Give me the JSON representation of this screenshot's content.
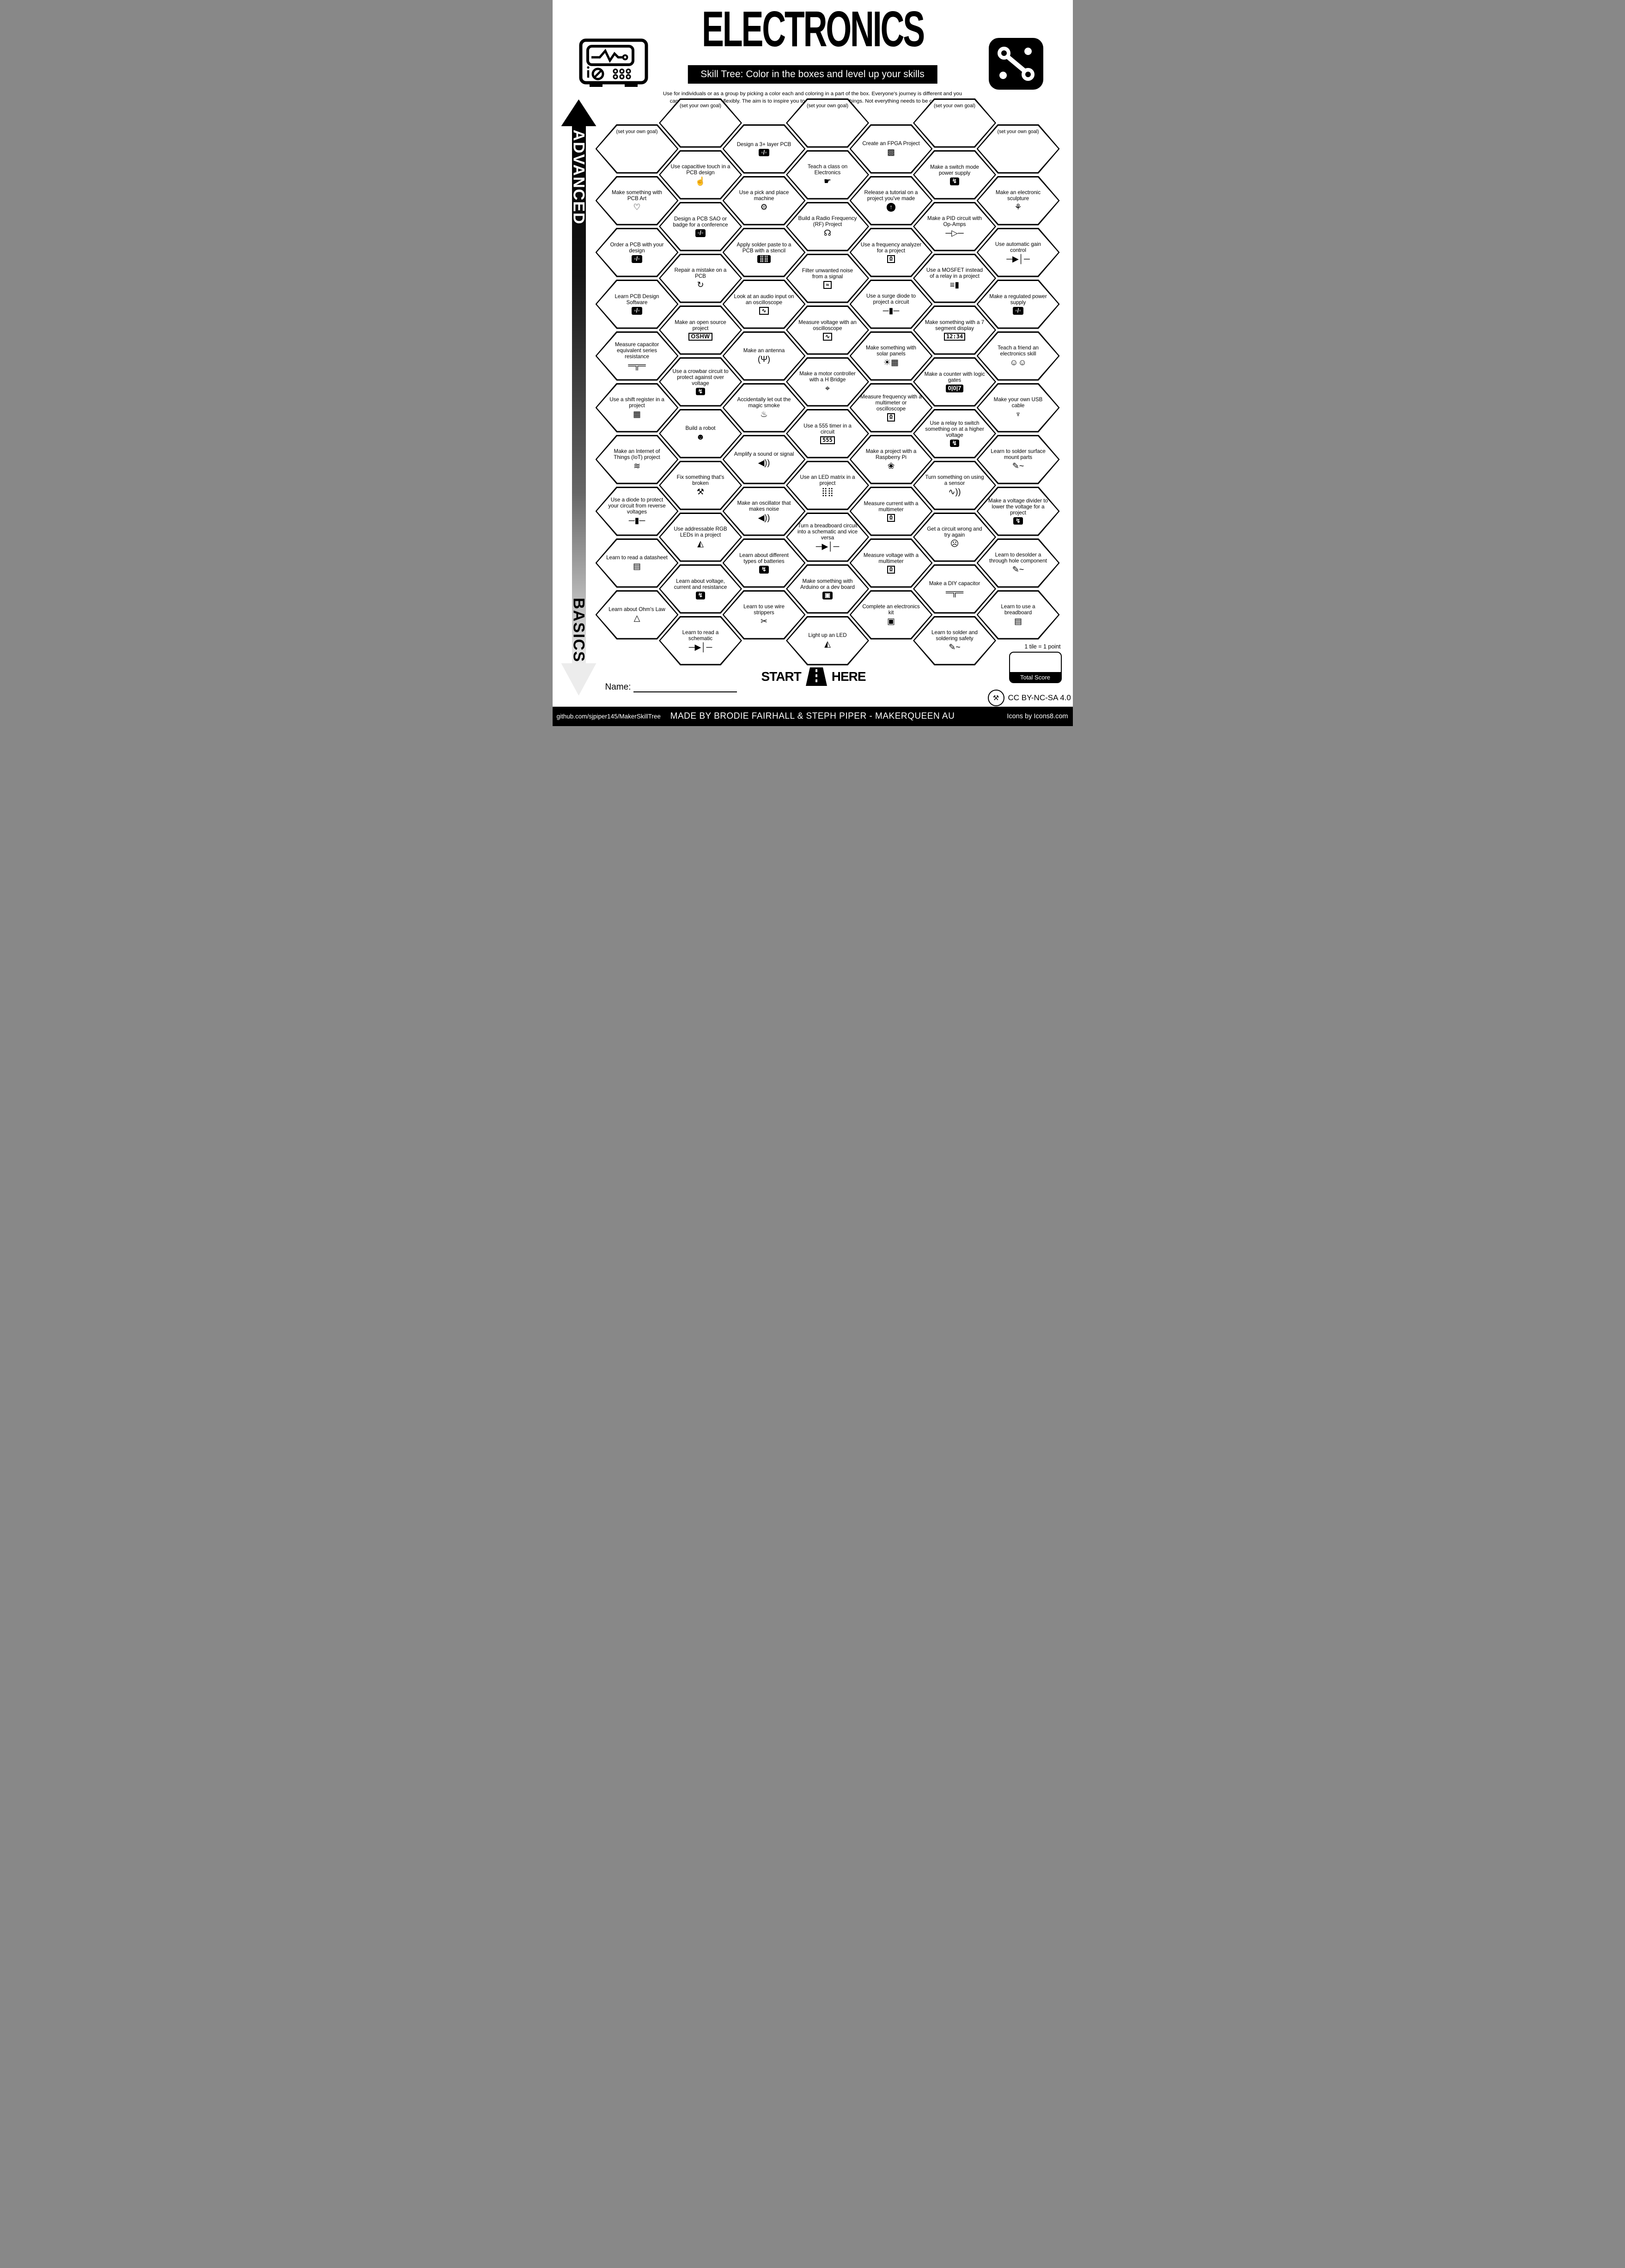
{
  "header": {
    "title": "ELECTRONICS",
    "subtitle": "Skill Tree:  Color in the boxes and level up your skills",
    "description": "Use for individuals or as a group by picking a color each and coloring in a part of the box.  Everyone's journey is different and you can interpret the goals flexibly.  The aim is to inspire you to learn and try new things. Not everything needs to be completed."
  },
  "axis": {
    "top_label": "ADVANCED",
    "bottom_label": "BASICS"
  },
  "colors": {
    "ink": "#000000",
    "paper": "#ffffff"
  },
  "tiles": [
    {
      "label": "(set your own goal)",
      "col": 1,
      "row": 0,
      "goal": true
    },
    {
      "label": "Make something with PCB Art",
      "icon": "heart-icon",
      "col": 1,
      "row": 1
    },
    {
      "label": "Order a PCB with your design",
      "icon": "pcb-icon",
      "col": 1,
      "row": 2
    },
    {
      "label": "Learn PCB Design Software",
      "icon": "pcb-icon",
      "col": 1,
      "row": 3
    },
    {
      "label": "Measure capacitor equivalent series resistance",
      "icon": "capacitor-icon",
      "col": 1,
      "row": 4
    },
    {
      "label": "Use a shift register in a project",
      "icon": "chip-icon",
      "col": 1,
      "row": 5
    },
    {
      "label": "Make an Internet of Things (IoT) project",
      "icon": "wifi-icon",
      "col": 1,
      "row": 6
    },
    {
      "label": "Use a diode to protect your circuit from reverse voltages",
      "icon": "diode-component-icon",
      "col": 1,
      "row": 7
    },
    {
      "label": "Learn to read a datasheet",
      "icon": "datasheet-icon",
      "col": 1,
      "row": 8
    },
    {
      "label": "Learn about Ohm's Law",
      "icon": "ohms-law-icon",
      "col": 1,
      "row": 9
    },
    {
      "label": "(set your own goal)",
      "col": 2,
      "row": 0,
      "goal": true
    },
    {
      "label": "Use capacitive touch in a PCB design",
      "icon": "touch-icon",
      "col": 2,
      "row": 1
    },
    {
      "label": "Design a PCB SAO or badge for a conference",
      "icon": "pcb-icon",
      "col": 2,
      "row": 2
    },
    {
      "label": "Repair a mistake on a PCB",
      "icon": "repair-icon",
      "col": 2,
      "row": 3
    },
    {
      "label": "Make an open source project",
      "icon": "oshw-icon",
      "col": 2,
      "row": 4
    },
    {
      "label": "Use a crowbar circuit to protect against over voltage",
      "icon": "surge-icon",
      "col": 2,
      "row": 5
    },
    {
      "label": "Build a robot",
      "icon": "robot-icon",
      "col": 2,
      "row": 6
    },
    {
      "label": "Fix something that's broken",
      "icon": "tools-icon",
      "col": 2,
      "row": 7
    },
    {
      "label": "Use addressable RGB LEDs in a project",
      "icon": "led-icon",
      "col": 2,
      "row": 8
    },
    {
      "label": "Learn about voltage, current and resistance",
      "icon": "power-icon",
      "col": 2,
      "row": 9
    },
    {
      "label": "Learn to read a schematic",
      "icon": "diode-symbol-icon",
      "col": 2,
      "row": 10
    },
    {
      "label": "Design a 3+ layer PCB",
      "icon": "pcb-icon",
      "col": 3,
      "row": 0
    },
    {
      "label": "Use a pick and place machine",
      "icon": "machine-icon",
      "col": 3,
      "row": 1
    },
    {
      "label": "Apply solder paste to a PCB with a stencil",
      "icon": "stencil-icon",
      "col": 3,
      "row": 2
    },
    {
      "label": "Look at an audio input on an oscilloscope",
      "icon": "oscilloscope-wave-icon",
      "col": 3,
      "row": 3
    },
    {
      "label": "Make an antenna",
      "icon": "antenna-icon",
      "col": 3,
      "row": 4
    },
    {
      "label": "Accidentally let out the magic smoke",
      "icon": "smoke-icon",
      "col": 3,
      "row": 5
    },
    {
      "label": "Amplify a sound or signal",
      "icon": "speaker-icon",
      "col": 3,
      "row": 6
    },
    {
      "label": "Make an oscillator that makes noise",
      "icon": "speaker-icon",
      "col": 3,
      "row": 7
    },
    {
      "label": "Learn about different types of batteries",
      "icon": "battery-icon",
      "col": 3,
      "row": 8
    },
    {
      "label": "Learn to use wire strippers",
      "icon": "wire-strippers-icon",
      "col": 3,
      "row": 9
    },
    {
      "label": "(set your own goal)",
      "col": 4,
      "row": 0,
      "goal": true
    },
    {
      "label": "Teach a class on Electronics",
      "icon": "teacher-icon",
      "col": 4,
      "row": 1
    },
    {
      "label": "Build a Radio Frequency (RF) Project",
      "icon": "radio-icon",
      "col": 4,
      "row": 2
    },
    {
      "label": "Filter unwanted noise from a signal",
      "icon": "oscilloscope-noise-icon",
      "col": 4,
      "row": 3
    },
    {
      "label": "Measure voltage with an oscilloscope",
      "icon": "oscilloscope-icon",
      "col": 4,
      "row": 4
    },
    {
      "label": "Make a motor controller with a H Bridge",
      "icon": "motor-controller-icon",
      "col": 4,
      "row": 5
    },
    {
      "label": "Use a 555 timer in a circuit",
      "icon": "timer-555-icon",
      "col": 4,
      "row": 6
    },
    {
      "label": "Use an LED matrix in a project",
      "icon": "led-matrix-icon",
      "col": 4,
      "row": 7
    },
    {
      "label": "Turn a breadboard circuit into a schematic and vice versa",
      "icon": "diode-symbol-icon",
      "col": 4,
      "row": 8
    },
    {
      "label": "Make something with Arduino or a dev board",
      "icon": "dev-board-icon",
      "col": 4,
      "row": 9
    },
    {
      "label": "Light up an LED",
      "icon": "led-icon",
      "col": 4,
      "row": 10
    },
    {
      "label": "Create an FPGA Project",
      "icon": "fpga-icon",
      "col": 5,
      "row": 0
    },
    {
      "label": "Release a tutorial on a project you've made",
      "icon": "upload-icon",
      "col": 5,
      "row": 1
    },
    {
      "label": "Use a frequency analyzer for a project",
      "icon": "multimeter-icon",
      "col": 5,
      "row": 2
    },
    {
      "label": "Use a surge diode to project a circuit",
      "icon": "diode-component-icon",
      "col": 5,
      "row": 3
    },
    {
      "label": "Make something with solar panels",
      "icon": "solar-panel-icon",
      "col": 5,
      "row": 4
    },
    {
      "label": "Measure frequency with a multimeter or oscilloscope",
      "icon": "multimeter-icon",
      "col": 5,
      "row": 5
    },
    {
      "label": "Make a project with a Raspberry Pi",
      "icon": "raspberry-icon",
      "col": 5,
      "row": 6
    },
    {
      "label": "Measure current with a multimeter",
      "icon": "multimeter-icon",
      "col": 5,
      "row": 7
    },
    {
      "label": "Measure voltage with a multimeter",
      "icon": "multimeter-icon",
      "col": 5,
      "row": 8
    },
    {
      "label": "Complete an electronics kit",
      "icon": "kit-box-icon",
      "col": 5,
      "row": 9
    },
    {
      "label": "(set your own goal)",
      "col": 6,
      "row": 0,
      "goal": true
    },
    {
      "label": "Make a switch mode power supply",
      "icon": "power-icon",
      "col": 6,
      "row": 1
    },
    {
      "label": "Make a PID circuit with Op-Amps",
      "icon": "opamp-icon",
      "col": 6,
      "row": 2
    },
    {
      "label": "Use a MOSFET instead of a relay in a project",
      "icon": "mosfet-icon",
      "col": 6,
      "row": 3
    },
    {
      "label": "Make something with a 7 segment display",
      "icon": "seven-segment-icon",
      "col": 6,
      "row": 4
    },
    {
      "label": "Make a counter with logic gates",
      "icon": "counter-icon",
      "col": 6,
      "row": 5
    },
    {
      "label": "Use a relay to switch something on at a higher voltage",
      "icon": "relay-icon",
      "col": 6,
      "row": 6
    },
    {
      "label": "Turn something on using a sensor",
      "icon": "sensor-icon",
      "col": 6,
      "row": 7
    },
    {
      "label": "Get a circuit wrong and try again",
      "icon": "facepalm-icon",
      "col": 6,
      "row": 8
    },
    {
      "label": "Make a DIY capacitor",
      "icon": "capacitor-icon",
      "col": 6,
      "row": 9
    },
    {
      "label": "Learn to solder and soldering safety",
      "icon": "soldering-iron-icon",
      "col": 6,
      "row": 10
    },
    {
      "label": "(set your own goal)",
      "col": 7,
      "row": 0,
      "goal": true
    },
    {
      "label": "Make an electronic sculpture",
      "icon": "sculpture-icon",
      "col": 7,
      "row": 1
    },
    {
      "label": "Use automatic gain control",
      "icon": "diode-symbol-icon",
      "col": 7,
      "row": 2
    },
    {
      "label": "Make a regulated power supply",
      "icon": "pcb-icon",
      "col": 7,
      "row": 3
    },
    {
      "label": "Teach a friend an electronics skill",
      "icon": "friends-icon",
      "col": 7,
      "row": 4
    },
    {
      "label": "Make your own USB cable",
      "icon": "usb-icon",
      "col": 7,
      "row": 5
    },
    {
      "label": "Learn to solder surface mount parts",
      "icon": "soldering-iron-icon",
      "col": 7,
      "row": 6
    },
    {
      "label": "Make a voltage divider to lower the voltage for a project",
      "icon": "power-icon",
      "col": 7,
      "row": 7
    },
    {
      "label": "Learn to desolder a through hole component",
      "icon": "desolder-icon",
      "col": 7,
      "row": 8
    },
    {
      "label": "Learn to use a breadboard",
      "icon": "breadboard-icon",
      "col": 7,
      "row": 9
    }
  ],
  "footer": {
    "start_label": "START",
    "here_label": "HERE",
    "name_label": "Name:",
    "tile_point_note": "1 tile = 1 point",
    "total_score_label": "Total Score",
    "license": "CC BY-NC-SA 4.0",
    "bar": {
      "left": "github.com/sjpiper145/MakerSkillTree",
      "center": "MADE BY BRODIE FAIRHALL & STEPH PIPER  -  MAKERQUEEN AU",
      "right": "Icons by Icons8.com"
    }
  }
}
